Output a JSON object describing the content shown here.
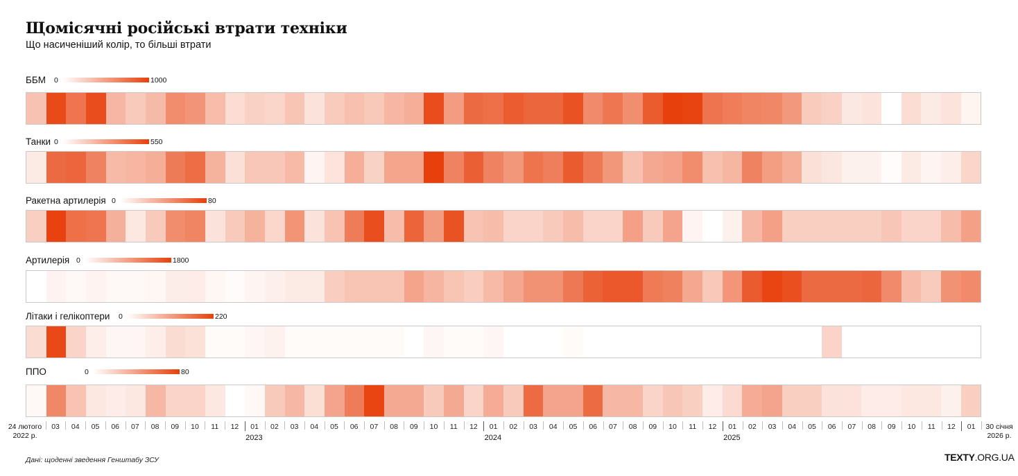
{
  "title": "Щомісячні російські втрати техніки",
  "subtitle": "Що насиченіший колір, то більші втрати",
  "accent_color": "#e7400c",
  "source": "Дані: щоденні зведення Генштабу ЗСУ",
  "brand": {
    "bold": "TEXTY",
    "rest": ".ORG.UA"
  },
  "axis": {
    "start_line1": "24 лютого",
    "start_line2": "2022 р.",
    "end_line1": "30 січня",
    "end_line2": "2026 р.",
    "months": [
      "03",
      "04",
      "05",
      "06",
      "07",
      "08",
      "09",
      "10",
      "11",
      "12",
      "01",
      "02",
      "03",
      "04",
      "05",
      "06",
      "07",
      "08",
      "09",
      "10",
      "11",
      "12",
      "01",
      "02",
      "03",
      "04",
      "05",
      "06",
      "07",
      "08",
      "09",
      "10",
      "11",
      "12",
      "01",
      "02",
      "03",
      "04",
      "05",
      "06",
      "07",
      "08",
      "09",
      "10",
      "11",
      "12",
      "01"
    ],
    "years": [
      "2023",
      "2024",
      "2025"
    ]
  },
  "chart_data": {
    "type": "heatmap",
    "title": "Щомісячні російські втрати техніки",
    "x_periods": [
      "2022-02",
      "2022-03",
      "2022-04",
      "2022-05",
      "2022-06",
      "2022-07",
      "2022-08",
      "2022-09",
      "2022-10",
      "2022-11",
      "2022-12",
      "2023-01",
      "2023-02",
      "2023-03",
      "2023-04",
      "2023-05",
      "2023-06",
      "2023-07",
      "2023-08",
      "2023-09",
      "2023-10",
      "2023-11",
      "2023-12",
      "2024-01",
      "2024-02",
      "2024-03",
      "2024-04",
      "2024-05",
      "2024-06",
      "2024-07",
      "2024-08",
      "2024-09",
      "2024-10",
      "2024-11",
      "2024-12",
      "2025-01",
      "2025-02",
      "2025-03",
      "2025-04",
      "2025-05",
      "2025-06",
      "2025-07",
      "2025-08",
      "2025-09",
      "2025-10",
      "2025-11",
      "2025-12",
      "2026-01"
    ],
    "series": [
      {
        "name": "ББМ",
        "min": 0,
        "max": 1000,
        "values": [
          320,
          950,
          720,
          930,
          380,
          280,
          360,
          600,
          560,
          350,
          180,
          240,
          220,
          310,
          150,
          270,
          330,
          290,
          380,
          420,
          930,
          520,
          780,
          750,
          850,
          800,
          800,
          900,
          610,
          710,
          590,
          860,
          1000,
          980,
          730,
          680,
          640,
          630,
          540,
          270,
          240,
          120,
          140,
          0,
          180,
          110,
          140,
          60
        ]
      },
      {
        "name": "Танки",
        "min": 0,
        "max": 550,
        "values": [
          60,
          430,
          440,
          360,
          200,
          210,
          230,
          380,
          420,
          220,
          90,
          160,
          160,
          200,
          30,
          80,
          230,
          130,
          260,
          260,
          550,
          360,
          460,
          360,
          300,
          400,
          370,
          470,
          390,
          300,
          180,
          250,
          270,
          330,
          180,
          210,
          360,
          280,
          230,
          90,
          70,
          40,
          40,
          10,
          60,
          30,
          50,
          120
        ]
      },
      {
        "name": "Ракетна артилерія",
        "min": 0,
        "max": 80,
        "values": [
          20,
          79,
          60,
          58,
          33,
          10,
          22,
          48,
          51,
          12,
          22,
          32,
          17,
          45,
          12,
          25,
          55,
          74,
          28,
          65,
          42,
          72,
          25,
          28,
          18,
          18,
          22,
          28,
          18,
          18,
          40,
          22,
          38,
          4,
          0,
          6,
          30,
          40,
          20,
          20,
          20,
          20,
          20,
          24,
          18,
          18,
          28,
          40
        ]
      },
      {
        "name": "Артилерія",
        "min": 0,
        "max": 1800,
        "values": [
          0,
          110,
          60,
          110,
          60,
          60,
          80,
          170,
          180,
          80,
          40,
          100,
          140,
          190,
          190,
          460,
          560,
          560,
          560,
          860,
          700,
          560,
          460,
          650,
          830,
          1030,
          1030,
          1270,
          1480,
          1570,
          1570,
          1250,
          1190,
          820,
          520,
          1000,
          1540,
          1750,
          1660,
          1400,
          1400,
          1400,
          1440,
          1100,
          630,
          490,
          1030,
          1100
        ]
      },
      {
        "name": "Літаки і гелікоптери",
        "min": 0,
        "max": 220,
        "values": [
          40,
          210,
          50,
          20,
          10,
          10,
          20,
          40,
          35,
          5,
          5,
          10,
          15,
          5,
          5,
          5,
          5,
          5,
          5,
          0,
          10,
          5,
          5,
          10,
          0,
          0,
          0,
          5,
          0,
          0,
          0,
          0,
          0,
          0,
          0,
          0,
          0,
          0,
          0,
          0,
          50,
          0,
          0,
          0,
          0,
          0,
          0,
          0
        ]
      },
      {
        "name": "ППО",
        "min": 0,
        "max": 80,
        "values": [
          3,
          50,
          25,
          10,
          8,
          10,
          30,
          18,
          18,
          10,
          0,
          3,
          22,
          30,
          14,
          38,
          55,
          78,
          36,
          36,
          22,
          36,
          18,
          35,
          22,
          62,
          38,
          38,
          62,
          30,
          30,
          18,
          24,
          20,
          8,
          15,
          35,
          38,
          20,
          20,
          12,
          12,
          8,
          8,
          10,
          10,
          6,
          20
        ]
      }
    ]
  }
}
